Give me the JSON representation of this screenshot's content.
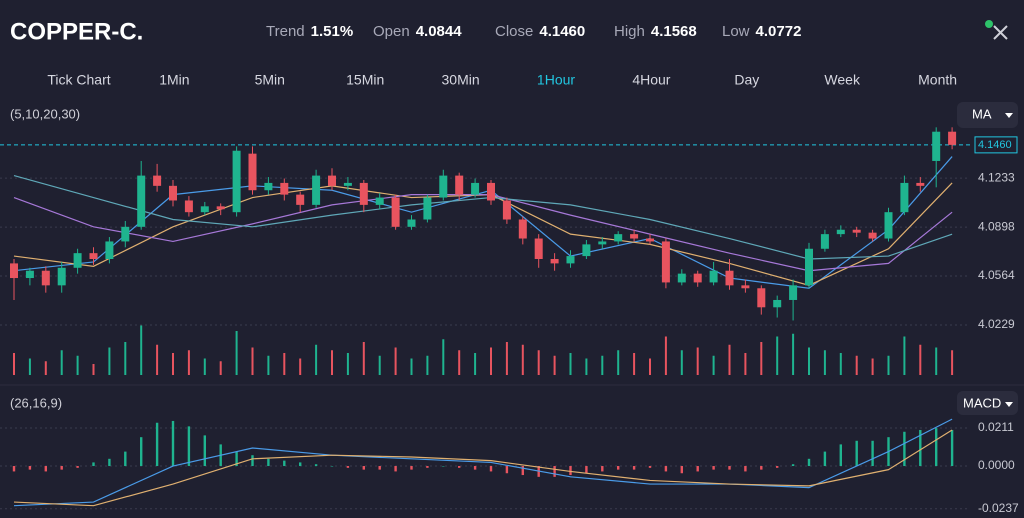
{
  "header": {
    "symbol": "COPPER-C.",
    "stats": [
      {
        "label": "Trend",
        "value": "1.51%"
      },
      {
        "label": "Open",
        "value": "4.0844"
      },
      {
        "label": "Close",
        "value": "4.1460"
      },
      {
        "label": "High",
        "value": "4.1568"
      },
      {
        "label": "Low",
        "value": "4.0772"
      }
    ]
  },
  "timeframes": [
    "Tick Chart",
    "1Min",
    "5Min",
    "15Min",
    "30Min",
    "1Hour",
    "4Hour",
    "Day",
    "Week",
    "Month"
  ],
  "selected_timeframe": "1Hour",
  "price_chart": {
    "type": "candlestick",
    "params": "(5,10,20,30)",
    "indicator": "MA",
    "up_color": "#1fb48f",
    "down_color": "#e8545f",
    "ylim": [
      4.0229,
      4.1712
    ],
    "yticks": [
      4.1233,
      4.0898,
      4.0564,
      4.0229
    ],
    "last_price": {
      "value": 4.146,
      "label": "4.1460"
    },
    "candles": [
      [
        4.065,
        4.068,
        4.04,
        4.055
      ],
      [
        4.055,
        4.062,
        4.05,
        4.06
      ],
      [
        4.06,
        4.063,
        4.045,
        4.05
      ],
      [
        4.05,
        4.066,
        4.045,
        4.062
      ],
      [
        4.062,
        4.075,
        4.058,
        4.072
      ],
      [
        4.072,
        4.076,
        4.064,
        4.068
      ],
      [
        4.068,
        4.083,
        4.065,
        4.08
      ],
      [
        4.08,
        4.094,
        4.076,
        4.09
      ],
      [
        4.09,
        4.135,
        4.088,
        4.125
      ],
      [
        4.125,
        4.133,
        4.114,
        4.118
      ],
      [
        4.118,
        4.122,
        4.104,
        4.108
      ],
      [
        4.108,
        4.111,
        4.097,
        4.1
      ],
      [
        4.1,
        4.107,
        4.098,
        4.104
      ],
      [
        4.104,
        4.106,
        4.098,
        4.102
      ],
      [
        4.1,
        4.145,
        4.097,
        4.142
      ],
      [
        4.14,
        4.145,
        4.112,
        4.115
      ],
      [
        4.115,
        4.124,
        4.112,
        4.12
      ],
      [
        4.12,
        4.123,
        4.108,
        4.112
      ],
      [
        4.112,
        4.114,
        4.1,
        4.105
      ],
      [
        4.105,
        4.129,
        4.103,
        4.125
      ],
      [
        4.125,
        4.13,
        4.115,
        4.118
      ],
      [
        4.118,
        4.124,
        4.115,
        4.12
      ],
      [
        4.12,
        4.122,
        4.1,
        4.105
      ],
      [
        4.105,
        4.113,
        4.102,
        4.11
      ],
      [
        4.11,
        4.112,
        4.088,
        4.09
      ],
      [
        4.09,
        4.098,
        4.088,
        4.095
      ],
      [
        4.095,
        4.112,
        4.093,
        4.11
      ],
      [
        4.11,
        4.129,
        4.108,
        4.125
      ],
      [
        4.125,
        4.127,
        4.108,
        4.112
      ],
      [
        4.112,
        4.123,
        4.11,
        4.12
      ],
      [
        4.12,
        4.122,
        4.105,
        4.108
      ],
      [
        4.108,
        4.11,
        4.092,
        4.095
      ],
      [
        4.095,
        4.097,
        4.078,
        4.082
      ],
      [
        4.082,
        4.085,
        4.062,
        4.068
      ],
      [
        4.068,
        4.072,
        4.06,
        4.065
      ],
      [
        4.065,
        4.074,
        4.062,
        4.07
      ],
      [
        4.07,
        4.081,
        4.068,
        4.078
      ],
      [
        4.078,
        4.083,
        4.075,
        4.08
      ],
      [
        4.08,
        4.087,
        4.078,
        4.085
      ],
      [
        4.085,
        4.088,
        4.08,
        4.082
      ],
      [
        4.082,
        4.085,
        4.078,
        4.08
      ],
      [
        4.08,
        4.082,
        4.048,
        4.052
      ],
      [
        4.052,
        4.061,
        4.05,
        4.058
      ],
      [
        4.058,
        4.06,
        4.049,
        4.052
      ],
      [
        4.052,
        4.066,
        4.05,
        4.06
      ],
      [
        4.06,
        4.068,
        4.047,
        4.05
      ],
      [
        4.05,
        4.054,
        4.045,
        4.048
      ],
      [
        4.048,
        4.05,
        4.03,
        4.035
      ],
      [
        4.035,
        4.043,
        4.028,
        4.04
      ],
      [
        4.04,
        4.054,
        4.026,
        4.05
      ],
      [
        4.05,
        4.079,
        4.048,
        4.075
      ],
      [
        4.075,
        4.088,
        4.073,
        4.085
      ],
      [
        4.085,
        4.091,
        4.083,
        4.088
      ],
      [
        4.088,
        4.09,
        4.083,
        4.086
      ],
      [
        4.086,
        4.088,
        4.08,
        4.082
      ],
      [
        4.082,
        4.103,
        4.08,
        4.1
      ],
      [
        4.1,
        4.125,
        4.098,
        4.12
      ],
      [
        4.12,
        4.124,
        4.114,
        4.118
      ],
      [
        4.135,
        4.158,
        4.117,
        4.155
      ],
      [
        4.155,
        4.158,
        4.143,
        4.146
      ]
    ],
    "ma_x": [
      0,
      5,
      10,
      15,
      20,
      25,
      30,
      35,
      40,
      45,
      50,
      55,
      59
    ],
    "ma_series": [
      {
        "color": "#4a9be8",
        "values": [
          4.06,
          4.066,
          4.112,
          4.118,
          4.115,
          4.1,
          4.115,
          4.07,
          4.082,
          4.055,
          4.048,
          4.088,
          4.138
        ]
      },
      {
        "color": "#e0b070",
        "values": [
          4.07,
          4.063,
          4.09,
          4.11,
          4.118,
          4.11,
          4.112,
          4.085,
          4.078,
          4.065,
          4.05,
          4.075,
          4.12
        ]
      },
      {
        "color": "#a678d8",
        "values": [
          4.11,
          4.09,
          4.08,
          4.092,
          4.105,
          4.112,
          4.112,
          4.098,
          4.085,
          4.072,
          4.06,
          4.065,
          4.1
        ]
      },
      {
        "color": "#5fa8b8",
        "values": [
          4.125,
          4.11,
          4.095,
          4.09,
          4.098,
          4.105,
          4.11,
          4.105,
          4.095,
          4.082,
          4.068,
          4.07,
          4.085
        ]
      }
    ],
    "volume_ylim": [
      0,
      100
    ],
    "volumes": [
      40,
      30,
      25,
      45,
      35,
      20,
      50,
      60,
      90,
      55,
      40,
      45,
      30,
      25,
      80,
      50,
      35,
      40,
      30,
      55,
      45,
      40,
      60,
      35,
      50,
      30,
      35,
      65,
      45,
      40,
      50,
      60,
      55,
      45,
      35,
      40,
      30,
      35,
      45,
      40,
      30,
      70,
      45,
      50,
      35,
      55,
      40,
      60,
      70,
      75,
      50,
      45,
      40,
      35,
      30,
      35,
      70,
      55,
      50,
      45
    ]
  },
  "macd_chart": {
    "type": "macd",
    "params": "(26,16,9)",
    "indicator": "MACD",
    "ylim": [
      -0.0255,
      0.0283
    ],
    "yticks": [
      0.0211,
      {
        "value": 0,
        "label": "0.0000"
      },
      -0.0237
    ],
    "histogram": [
      -0.003,
      -0.002,
      -0.003,
      -0.002,
      -0.001,
      0.002,
      0.004,
      0.008,
      0.016,
      0.024,
      0.025,
      0.022,
      0.017,
      0.012,
      0.008,
      0.006,
      0.004,
      0.003,
      0.002,
      0.001,
      0.0,
      -0.001,
      -0.002,
      -0.002,
      -0.003,
      -0.002,
      -0.001,
      0.0,
      -0.001,
      -0.002,
      -0.003,
      -0.004,
      -0.005,
      -0.006,
      -0.006,
      -0.005,
      -0.004,
      -0.003,
      -0.002,
      -0.002,
      -0.001,
      -0.003,
      -0.004,
      -0.003,
      -0.002,
      -0.002,
      -0.003,
      -0.002,
      -0.001,
      0.001,
      0.004,
      0.008,
      0.012,
      0.014,
      0.014,
      0.016,
      0.019,
      0.02,
      0.021,
      0.02
    ],
    "line_x": [
      0,
      5,
      10,
      15,
      20,
      25,
      30,
      35,
      40,
      45,
      50,
      55,
      59
    ],
    "lines": [
      {
        "color": "#4a9be8",
        "values": [
          -0.022,
          -0.02,
          0.0,
          0.01,
          0.006,
          0.004,
          0.002,
          -0.006,
          -0.01,
          -0.01,
          -0.012,
          0.008,
          0.026
        ]
      },
      {
        "color": "#e0b070",
        "values": [
          -0.02,
          -0.022,
          -0.01,
          0.004,
          0.006,
          0.005,
          0.003,
          -0.003,
          -0.008,
          -0.01,
          -0.011,
          -0.002,
          0.02
        ]
      }
    ]
  }
}
